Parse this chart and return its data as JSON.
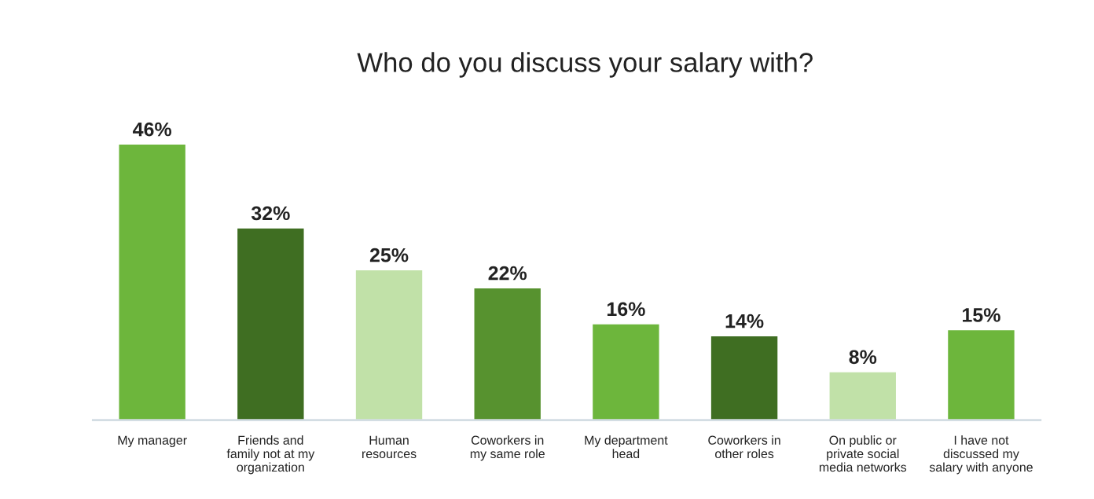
{
  "chart_data": {
    "type": "bar",
    "title": "Who do you discuss your salary with?",
    "categories": [
      "My manager",
      "Friends and\nfamily not at my\norganization",
      "Human\nresources",
      "Coworkers in\nmy same role",
      "My department\nhead",
      "Coworkers in\nother roles",
      "On public or\nprivate social\nmedia networks",
      "I have not\ndiscussed my\nsalary with anyone"
    ],
    "values": [
      46,
      32,
      25,
      22,
      16,
      14,
      8,
      15
    ],
    "value_labels": [
      "46%",
      "32%",
      "25%",
      "22%",
      "16%",
      "14%",
      "8%",
      "15%"
    ],
    "colors": [
      "#6db63c",
      "#3f6e22",
      "#c1e1a8",
      "#57922f",
      "#6db63c",
      "#3f6e22",
      "#c1e1a8",
      "#6db63c"
    ],
    "grid": false,
    "legend": false
  }
}
